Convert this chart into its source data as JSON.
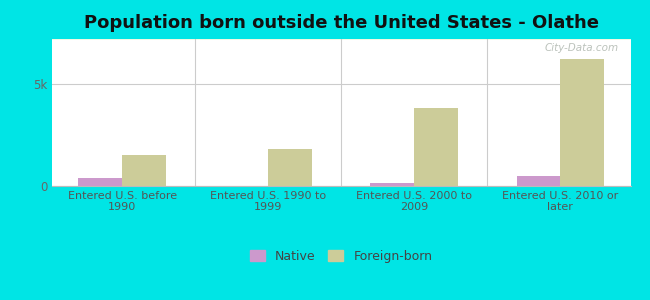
{
  "title": "Population born outside the United States - Olathe",
  "categories": [
    "Entered U.S. before\n1990",
    "Entered U.S. 1990 to\n1999",
    "Entered U.S. 2000 to\n2009",
    "Entered U.S. 2010 or\nlater"
  ],
  "native_values": [
    400,
    0,
    150,
    500
  ],
  "foreign_values": [
    1500,
    1800,
    3800,
    6200
  ],
  "native_color": "#cc99cc",
  "foreign_color": "#cccc99",
  "native_label": "Native",
  "foreign_label": "Foreign-born",
  "ytick_labels": [
    "0",
    "5k"
  ],
  "ytick_values": [
    0,
    5000
  ],
  "ylim": [
    0,
    7200
  ],
  "bar_width": 0.3,
  "outer_bg": "#00e5e5",
  "title_fontsize": 13,
  "tick_fontsize": 8.5,
  "label_fontsize": 8,
  "legend_fontsize": 9
}
